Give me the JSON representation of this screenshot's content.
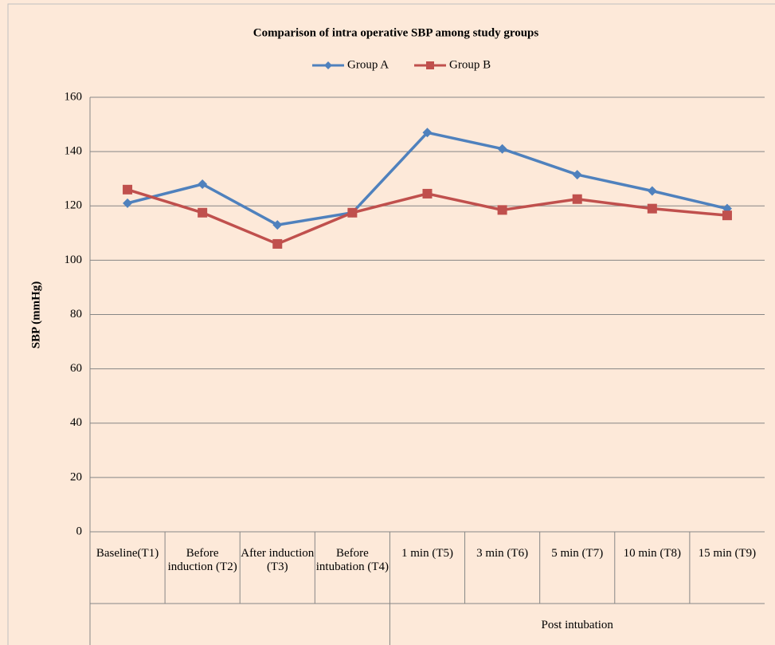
{
  "chart_data": {
    "type": "line",
    "title": "Comparison of intra operative  SBP among study groups",
    "y_label": "SBP (mmHg)",
    "categories": [
      "Baseline(T1)",
      "Before induction (T2)",
      "After induction (T3)",
      "Before intubation (T4)",
      "1 min (T5)",
      "3 min (T6)",
      "5 min (T7)",
      "10 min (T8)",
      "15 min (T9)"
    ],
    "category_group": {
      "label": "Post intubation",
      "span": [
        4,
        8
      ]
    },
    "series": [
      {
        "name": "Group A",
        "color": "#4f81bd",
        "marker": "diamond",
        "values": [
          121,
          128,
          113,
          117.5,
          147,
          141,
          131.5,
          125.5,
          119
        ]
      },
      {
        "name": "Group B",
        "color": "#c0504d",
        "marker": "square",
        "values": [
          126,
          117.5,
          106,
          117.5,
          124.5,
          118.5,
          122.5,
          119,
          116.5
        ]
      }
    ],
    "ylim": [
      0,
      160
    ],
    "yticks": [
      0,
      20,
      40,
      60,
      80,
      100,
      120,
      140,
      160
    ],
    "grid": true,
    "legend": "top"
  }
}
